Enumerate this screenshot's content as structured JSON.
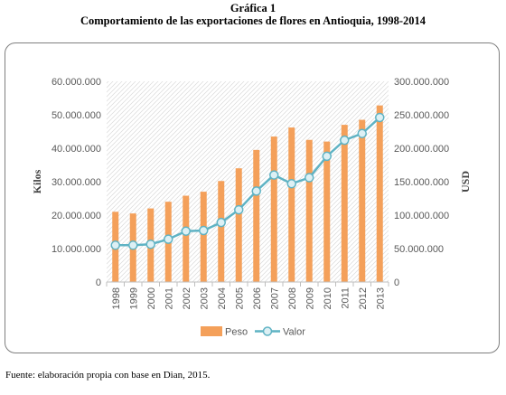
{
  "header": {
    "label": "Gráfica 1",
    "title": "Comportamiento de las exportaciones de flores en Antioquia, 1998-2014"
  },
  "source": "Fuente: elaboración propia con base en Dian, 2015.",
  "colors": {
    "bar": "#f4a05a",
    "line": "#5fb3c4",
    "marker_fill": "#ddf0f4",
    "axis": "#bfbfbf",
    "hatch": "#d9d9d9"
  },
  "chart_data": {
    "type": "bar",
    "categories": [
      "1998",
      "1999",
      "2000",
      "2001",
      "2002",
      "2003",
      "2004",
      "2005",
      "2006",
      "2007",
      "2008",
      "2009",
      "2010",
      "2011",
      "2012",
      "2013"
    ],
    "series": [
      {
        "name": "Peso",
        "type": "bar",
        "axis": "left",
        "values": [
          21000000,
          20500000,
          22000000,
          24000000,
          25800000,
          27000000,
          30200000,
          34000000,
          39500000,
          43500000,
          46200000,
          42500000,
          42000000,
          47000000,
          48500000,
          52800000
        ]
      },
      {
        "name": "Valor",
        "type": "line",
        "axis": "right",
        "values": [
          55000000,
          55000000,
          56500000,
          64000000,
          76000000,
          77000000,
          89000000,
          108000000,
          136000000,
          160000000,
          147000000,
          156000000,
          188000000,
          212000000,
          222000000,
          246000000
        ]
      }
    ],
    "ylabel": "Kilos",
    "y2label": "USD",
    "ylim": [
      0,
      60000000
    ],
    "y2lim": [
      0,
      300000000
    ],
    "yticks": [
      "0",
      "10.000.000",
      "20.000.000",
      "30.000.000",
      "40.000.000",
      "50.000.000",
      "60.000.000"
    ],
    "y2ticks": [
      "0",
      "50.000.000",
      "100.000.000",
      "150.000.000",
      "200.000.000",
      "250.000.000",
      "300.000.000"
    ],
    "legend": "bottom",
    "grid": "hatched plot area"
  }
}
